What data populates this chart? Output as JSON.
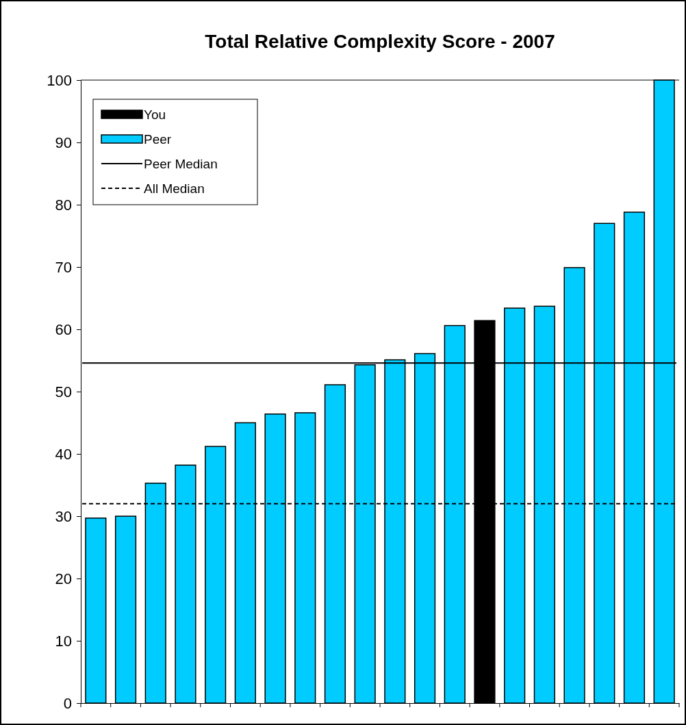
{
  "chart_data": {
    "type": "bar",
    "title": "Total Relative Complexity Score - 2007",
    "categories": [
      null,
      null,
      null,
      null,
      null,
      null,
      null,
      null,
      null,
      null,
      null,
      null,
      null,
      null,
      null,
      null,
      null,
      null,
      null,
      null
    ],
    "series": [
      {
        "name": "You",
        "color": "#000000",
        "values": [
          null,
          null,
          null,
          null,
          null,
          null,
          null,
          null,
          null,
          null,
          null,
          null,
          null,
          61.4,
          null,
          null,
          null,
          null,
          null,
          null
        ]
      },
      {
        "name": "Peer",
        "color": "#00ccff",
        "values": [
          29.7,
          30.0,
          35.3,
          38.2,
          41.2,
          45.0,
          46.4,
          46.6,
          51.1,
          54.3,
          55.1,
          56.1,
          60.6,
          null,
          63.4,
          63.7,
          69.9,
          77.0,
          78.8,
          100
        ]
      }
    ],
    "ylim": [
      0,
      100
    ],
    "yticks": [
      0,
      10,
      20,
      30,
      40,
      50,
      60,
      70,
      80,
      90,
      100
    ],
    "ref_lines": [
      {
        "axis": "y",
        "value": 54.6,
        "label": "Peer Median",
        "color": "#000000",
        "line_style": "solid"
      },
      {
        "axis": "y",
        "value": 32,
        "label": "All Median",
        "color": "#000000",
        "line_style": "dashed"
      }
    ],
    "legend": "top left",
    "grid": false
  }
}
